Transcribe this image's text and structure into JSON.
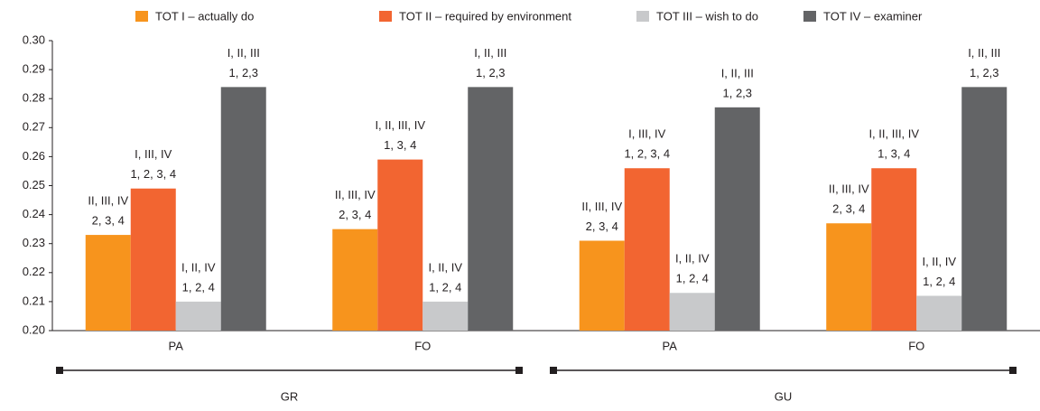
{
  "chart_data": {
    "type": "bar",
    "categories": [
      "PA",
      "FO",
      "PA",
      "FO"
    ],
    "groups": [
      "GR",
      "GU"
    ],
    "ylim": [
      0.2,
      0.3
    ],
    "yticks": [
      {
        "value": 0.2,
        "label": "0.20"
      },
      0.21,
      0.22,
      0.23,
      0.24,
      0.25,
      0.26,
      0.27,
      0.28,
      0.29,
      {
        "value": 0.3,
        "label": "0.30"
      }
    ],
    "series": [
      {
        "name": "TOT I – actually do",
        "color": "#f7941d",
        "values": [
          0.233,
          0.235,
          0.231,
          0.237
        ],
        "annotations": [
          [
            "II, III, IV",
            "2, 3, 4"
          ],
          [
            "II, III, IV",
            "2, 3, 4"
          ],
          [
            "II, III, IV",
            "2, 3, 4"
          ],
          [
            "II, III, IV",
            "2, 3, 4"
          ]
        ]
      },
      {
        "name": "TOT II – required by environment",
        "color": "#f26531",
        "values": [
          0.249,
          0.259,
          0.256,
          0.256
        ],
        "annotations": [
          [
            "I, III, IV",
            "1, 2, 3, 4"
          ],
          [
            "I, II, III, IV",
            "1, 3, 4"
          ],
          [
            "I, III, IV",
            "1, 2, 3, 4"
          ],
          [
            "I, II, III, IV",
            "1, 3, 4"
          ]
        ]
      },
      {
        "name": "TOT III – wish to do",
        "color": "#c8c9cb",
        "values": [
          0.21,
          0.21,
          0.213,
          0.212
        ],
        "annotations": [
          [
            "I, II, IV",
            "1, 2, 4"
          ],
          [
            "I, II, IV",
            "1, 2, 4"
          ],
          [
            "I, II, IV",
            "1, 2, 4"
          ],
          [
            "I, II, IV",
            "1, 2, 4"
          ]
        ]
      },
      {
        "name": "TOT IV – examiner",
        "color": "#636466",
        "values": [
          0.284,
          0.284,
          0.277,
          0.284
        ],
        "annotations": [
          [
            "I, II, III",
            "1, 2,3"
          ],
          [
            "I, II, III",
            "1, 2,3"
          ],
          [
            "I, II, III",
            "1, 2,3"
          ],
          [
            "I, II, III",
            "1, 2,3"
          ]
        ]
      }
    ]
  }
}
